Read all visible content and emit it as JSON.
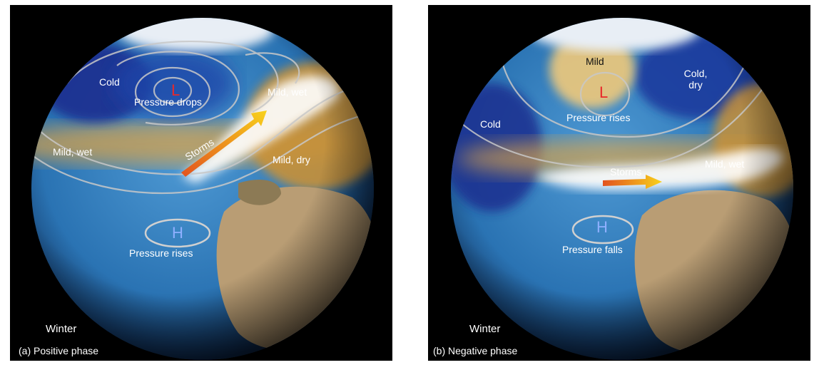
{
  "panels": [
    {
      "caption": "(a) Positive phase",
      "season": "Winter",
      "labels": {
        "cold": "Cold",
        "low": "L",
        "low_note": "Pressure drops",
        "mild_wet_ne": "Mild, wet",
        "mild_wet_w": "Mild, wet",
        "storms": "Storms",
        "mild_dry": "Mild, dry",
        "high": "H",
        "high_note": "Pressure rises"
      }
    },
    {
      "caption": "(b) Negative phase",
      "season": "Winter",
      "labels": {
        "mild": "Mild",
        "cold_dry": "Cold,\ndry",
        "low": "L",
        "low_note": "Pressure rises",
        "cold": "Cold",
        "storms": "Storms",
        "mild_wet": "Mild, wet",
        "high": "H",
        "high_note": "Pressure falls"
      }
    }
  ],
  "colors": {
    "ocean": "#2f7fc0",
    "cold_region": "#1f3c9a",
    "warm_region": "#d99a30",
    "land": "#b89b72",
    "storm_arrow": "#f6b820",
    "low_marker": "#e8282a",
    "high_marker": "#8fb0ff"
  }
}
